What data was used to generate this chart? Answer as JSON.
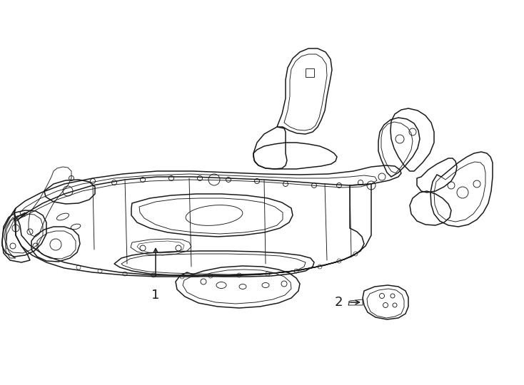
{
  "background_color": "#ffffff",
  "fig_width": 7.34,
  "fig_height": 5.4,
  "dpi": 100,
  "label1": "1",
  "label2": "2",
  "line_color": "#1a1a1a",
  "font_size": 13,
  "lw_main": 1.1,
  "lw_detail": 0.65,
  "lw_thin": 0.45
}
